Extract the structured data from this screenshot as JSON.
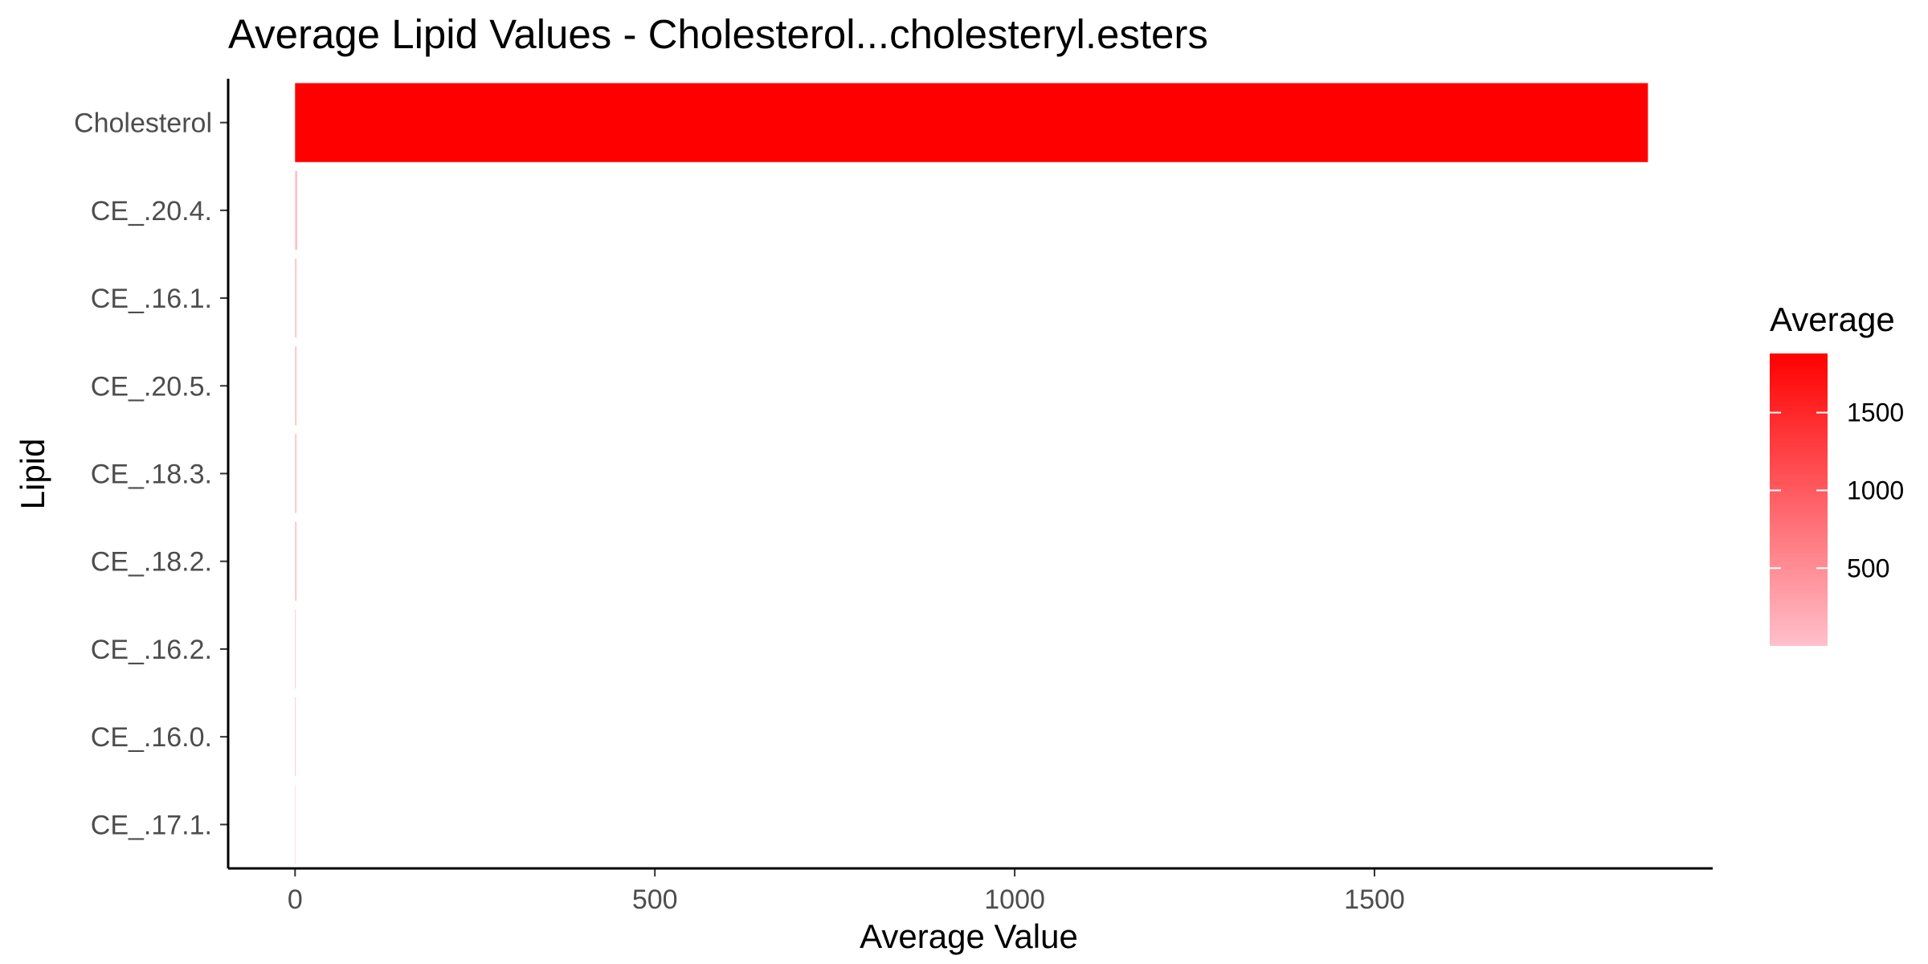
{
  "chart_data": {
    "type": "bar",
    "orientation": "horizontal",
    "title": "Average Lipid Values - Cholesterol...cholesteryl.esters",
    "xlabel": "Average Value",
    "ylabel": "Lipid",
    "categories": [
      "Cholesterol",
      "CE_.20.4.",
      "CE_.16.1.",
      "CE_.20.5.",
      "CE_.18.3.",
      "CE_.18.2.",
      "CE_.16.2.",
      "CE_.16.0.",
      "CE_.17.1."
    ],
    "values": [
      1880,
      3,
      2,
      2,
      2,
      2,
      1,
      1,
      0.5
    ],
    "xlim": [
      -93,
      1970
    ],
    "xticks": [
      0,
      500,
      1000,
      1500
    ],
    "xtick_labels": [
      "0",
      "500",
      "1000",
      "1500"
    ],
    "grid": false,
    "color_scale": {
      "low": "#ffc0cb",
      "high": "#ff0000",
      "min": 0.5,
      "max": 1880
    },
    "legend": {
      "title": "Average",
      "placement": "right",
      "ticks": [
        500,
        1000,
        1500
      ],
      "tick_labels": [
        "500",
        "1000",
        "1500"
      ]
    }
  }
}
